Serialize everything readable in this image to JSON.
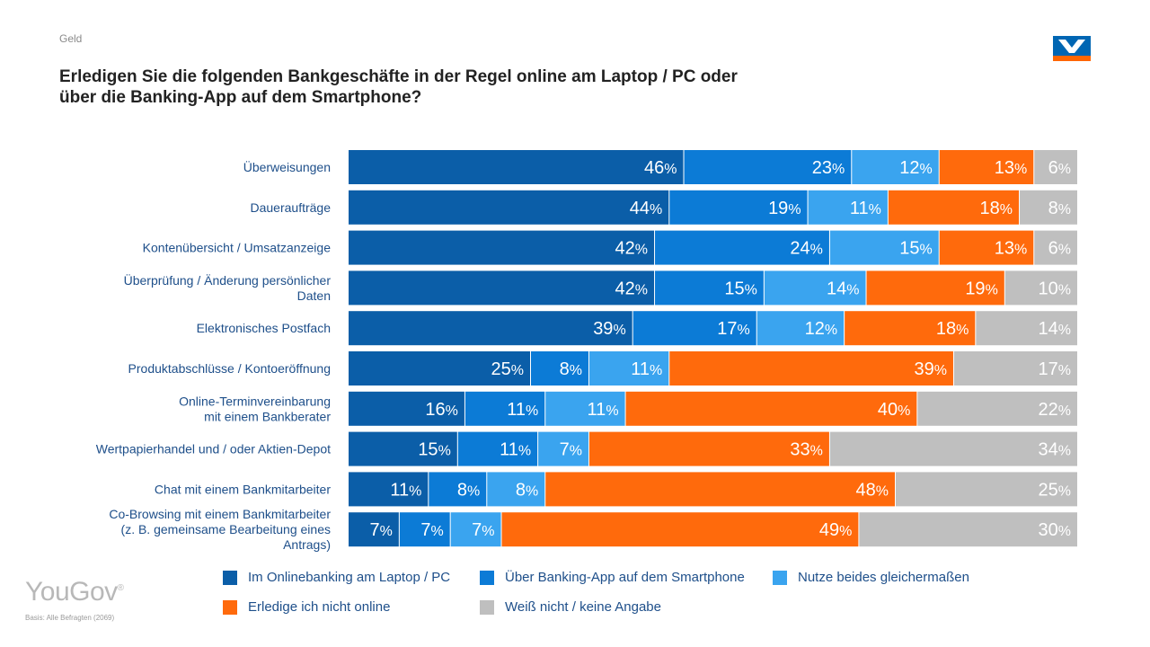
{
  "header": {
    "topic": "Geld",
    "title": "Erledigen Sie die folgenden Bankgeschäfte in der Regel online am Laptop / PC oder über die Banking-App auf dem Smartphone?"
  },
  "brand": {
    "logo_icon": "volksbank-logo-icon",
    "logo_blue": "#0066b3",
    "logo_orange": "#ff6600"
  },
  "footer": {
    "yougov": "YouGov",
    "basis": "Basis: Alle Befragten (2069)"
  },
  "chart_data": {
    "type": "bar",
    "orientation": "horizontal",
    "stacked": true,
    "unit": "%",
    "xlim": [
      0,
      100
    ],
    "categories": [
      [
        "Überweisungen"
      ],
      [
        "Daueraufträge"
      ],
      [
        "Kontenübersicht / Umsatzanzeige"
      ],
      [
        "Überprüfung / Änderung persönlicher",
        "Daten"
      ],
      [
        "Elektronisches Postfach"
      ],
      [
        "Produktabschlüsse / Kontoeröffnung"
      ],
      [
        "Online-Terminvereinbarung",
        "mit einem Bankberater"
      ],
      [
        "Wertpapierhandel und / oder Aktien-Depot"
      ],
      [
        "Chat mit einem Bankmitarbeiter"
      ],
      [
        "Co-Browsing mit einem Bankmitarbeiter",
        "(z. B. gemeinsame Bearbeitung eines",
        "Antrags)"
      ]
    ],
    "series": [
      {
        "name": "Im Onlinebanking am Laptop / PC",
        "color": "#0b5ea8",
        "values": [
          46,
          44,
          42,
          42,
          39,
          25,
          16,
          15,
          11,
          7
        ]
      },
      {
        "name": "Über Banking-App auf dem Smartphone",
        "color": "#0c7bd6",
        "values": [
          23,
          19,
          24,
          15,
          17,
          8,
          11,
          11,
          8,
          7
        ]
      },
      {
        "name": "Nutze beides gleichermaßen",
        "color": "#3aa4ef",
        "values": [
          12,
          11,
          15,
          14,
          12,
          11,
          11,
          7,
          8,
          7
        ]
      },
      {
        "name": "Erledige ich nicht online",
        "color": "#ff6a0c",
        "values": [
          13,
          18,
          13,
          19,
          18,
          39,
          40,
          33,
          48,
          49
        ]
      },
      {
        "name": "Weiß nicht / keine Angabe",
        "color": "#bfbfbf",
        "values": [
          6,
          8,
          6,
          10,
          14,
          17,
          22,
          34,
          25,
          30
        ]
      }
    ],
    "legend_position": "bottom"
  }
}
